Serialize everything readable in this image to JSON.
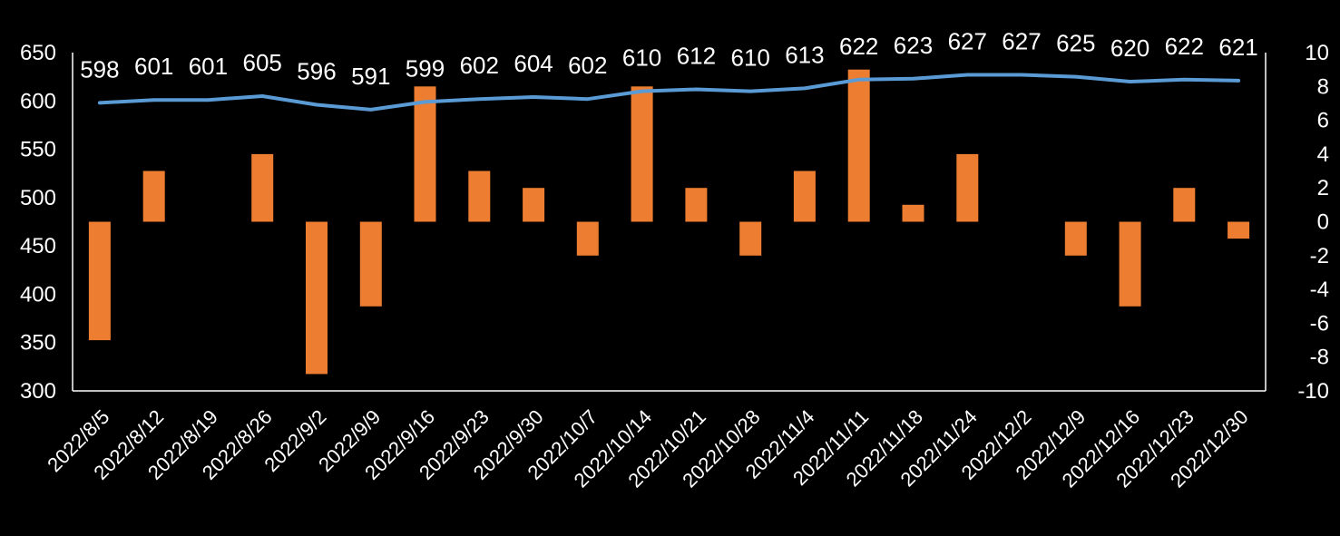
{
  "chart_data": {
    "type": "bar",
    "categories": [
      "2022/8/5",
      "2022/8/12",
      "2022/8/19",
      "2022/8/26",
      "2022/9/2",
      "2022/9/9",
      "2022/9/16",
      "2022/9/23",
      "2022/9/30",
      "2022/10/7",
      "2022/10/14",
      "2022/10/21",
      "2022/10/28",
      "2022/11/4",
      "2022/11/11",
      "2022/11/18",
      "2022/11/24",
      "2022/12/2",
      "2022/12/9",
      "2022/12/16",
      "2022/12/23",
      "2022/12/30"
    ],
    "series": [
      {
        "type": "line",
        "axis": "left",
        "color": "#5b9bd5",
        "values": [
          598,
          601,
          601,
          605,
          596,
          591,
          599,
          602,
          604,
          602,
          610,
          612,
          610,
          613,
          622,
          623,
          627,
          627,
          625,
          620,
          622,
          621
        ],
        "data_labels": true
      },
      {
        "type": "bar",
        "axis": "right",
        "color": "#ed7d31",
        "values": [
          -7,
          3,
          0,
          4,
          -9,
          -5,
          8,
          3,
          2,
          -2,
          8,
          2,
          -2,
          3,
          9,
          1,
          4,
          0,
          -2,
          -5,
          2,
          -1
        ]
      }
    ],
    "y_left": {
      "min": 300,
      "max": 650,
      "ticks": [
        "300",
        "350",
        "400",
        "450",
        "500",
        "550",
        "600",
        "650"
      ]
    },
    "y_right": {
      "min": -10,
      "max": 10,
      "ticks": [
        "-10",
        "-8",
        "-6",
        "-4",
        "-2",
        "0",
        "2",
        "4",
        "6",
        "8",
        "10"
      ]
    },
    "grid": false,
    "legend": "none",
    "title": "",
    "xlabel": "",
    "ylabel": ""
  }
}
